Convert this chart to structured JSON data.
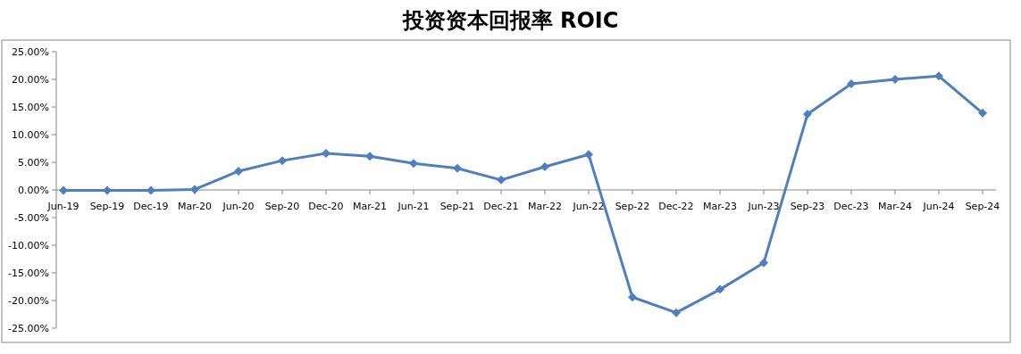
{
  "chart_data": {
    "type": "line",
    "title": "投资资本回报率 ROIC",
    "categories": [
      "Jun-19",
      "Sep-19",
      "Dec-19",
      "Mar-20",
      "Jun-20",
      "Sep-20",
      "Dec-20",
      "Mar-21",
      "Jun-21",
      "Sep-21",
      "Dec-21",
      "Mar-22",
      "Jun-22",
      "Sep-22",
      "Dec-22",
      "Mar-23",
      "Jun-23",
      "Sep-23",
      "Dec-23",
      "Mar-24",
      "Jun-24",
      "Sep-24"
    ],
    "series": [
      {
        "color": "#4f7fbd",
        "values": [
          -0.1,
          -0.1,
          -0.1,
          0.1,
          3.4,
          5.3,
          6.6,
          6.1,
          4.8,
          3.9,
          1.8,
          4.2,
          6.4,
          -19.4,
          -22.2,
          -18.0,
          -13.2,
          13.7,
          19.2,
          20.0,
          20.6,
          13.9
        ]
      }
    ],
    "ylim": [
      -25,
      25
    ],
    "yticks": [
      {
        "value": -25,
        "label": "-25.00%"
      },
      {
        "value": -20,
        "label": "-20.00%"
      },
      {
        "value": -15,
        "label": "-15.00%"
      },
      {
        "value": -10,
        "label": "-10.00%"
      },
      {
        "value": -5,
        "label": "-5.00%"
      },
      {
        "value": 0,
        "label": "0.00%"
      },
      {
        "value": 5,
        "label": "5.00%"
      },
      {
        "value": 10,
        "label": "10.00%"
      },
      {
        "value": 15,
        "label": "15.00%"
      },
      {
        "value": 20,
        "label": "20.00%"
      },
      {
        "value": 25,
        "label": "25.00%"
      }
    ],
    "marker": "diamond",
    "line_style": "solid",
    "grid": false
  }
}
